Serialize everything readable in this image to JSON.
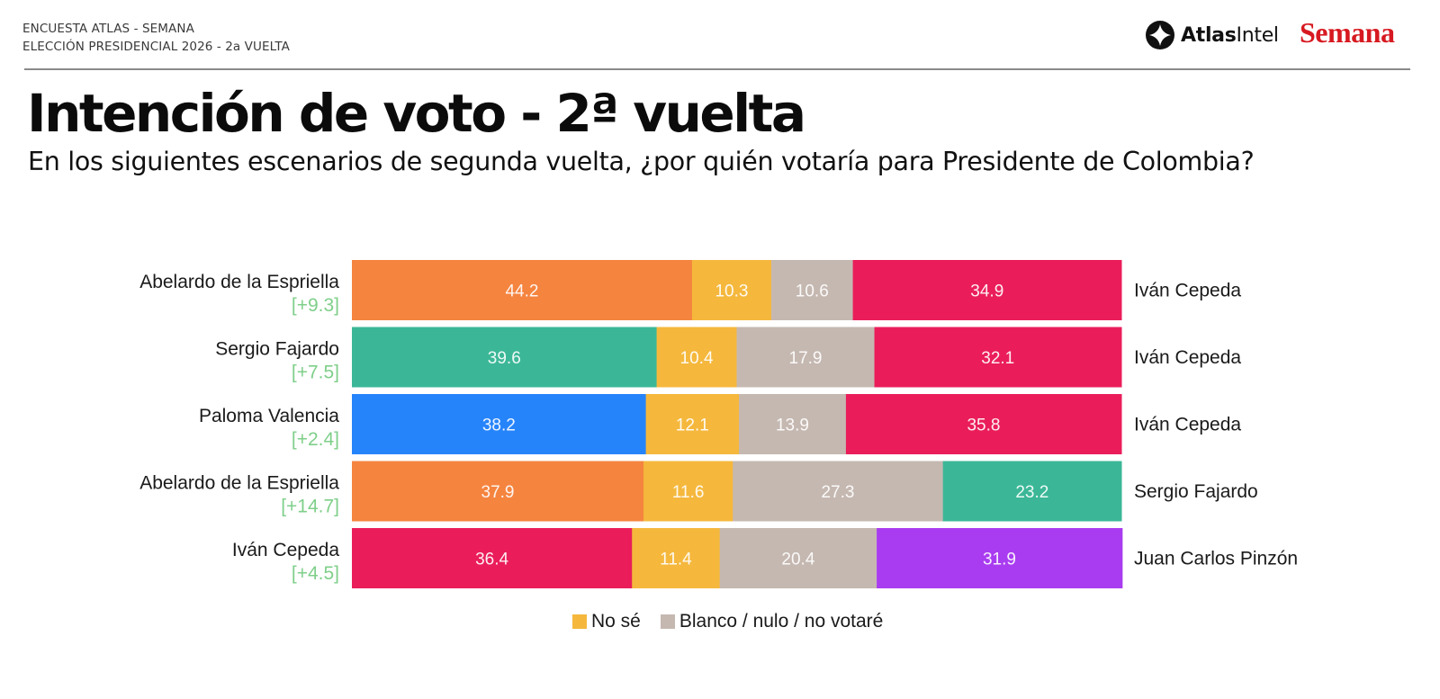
{
  "header": {
    "line1": "ENCUESTA ATLAS - SEMANA",
    "line2": "ELECCIÓN PRESIDENCIAL 2026 - 2a VUELTA",
    "logos": {
      "atlas_bold": "Atlas",
      "atlas_regular": "Intel",
      "atlas_icon": "atlasintel-diamond-icon",
      "semana": "Semana",
      "semana_color": "#d71a21"
    }
  },
  "title": "Intención de voto - 2ª vuelta",
  "subtitle": "En los siguientes escenarios de segunda vuelta, ¿por quién votaría para Presidente de Colombia?",
  "legend": [
    {
      "label": "No sé",
      "color": "#f5b83d"
    },
    {
      "label": "Blanco / nulo / no votaré",
      "color": "#c5b8b1"
    }
  ],
  "chart_data": {
    "type": "bar",
    "orientation": "horizontal",
    "stacked": true,
    "normalized_to": 100,
    "title": "Intención de voto - 2ª vuelta",
    "xlabel": "",
    "ylabel": "",
    "xlim": [
      0,
      100
    ],
    "grid": false,
    "legend_position": "bottom-center",
    "segment_order": [
      "left_candidate",
      "No sé",
      "Blanco / nulo / no votaré",
      "right_candidate"
    ],
    "rows": [
      {
        "left": "Abelardo de la Espriella",
        "left_color": "#f5843f",
        "margin": "[+9.3]",
        "right": "Iván Cepeda",
        "right_color": "#ea1d5a",
        "values": [
          44.2,
          10.3,
          10.6,
          34.9
        ]
      },
      {
        "left": "Sergio Fajardo",
        "left_color": "#3bb797",
        "margin": "[+7.5]",
        "right": "Iván Cepeda",
        "right_color": "#ea1d5a",
        "values": [
          39.6,
          10.4,
          17.9,
          32.1
        ]
      },
      {
        "left": "Paloma Valencia",
        "left_color": "#2684fb",
        "margin": "[+2.4]",
        "right": "Iván Cepeda",
        "right_color": "#ea1d5a",
        "values": [
          38.2,
          12.1,
          13.9,
          35.8
        ]
      },
      {
        "left": "Abelardo de la Espriella",
        "left_color": "#f5843f",
        "margin": "[+14.7]",
        "right": "Sergio Fajardo",
        "right_color": "#3bb797",
        "values": [
          37.9,
          11.6,
          27.3,
          23.2
        ]
      },
      {
        "left": "Iván Cepeda",
        "left_color": "#ea1d5a",
        "margin": "[+4.5]",
        "right": "Juan Carlos Pinzón",
        "right_color": "#a93cf0",
        "values": [
          36.4,
          11.4,
          20.4,
          31.9
        ]
      }
    ],
    "middle_colors": {
      "No sé": "#f5b83d",
      "Blanco / nulo / no votaré": "#c5b8b1"
    },
    "margin_color": "#7fcf8a"
  }
}
